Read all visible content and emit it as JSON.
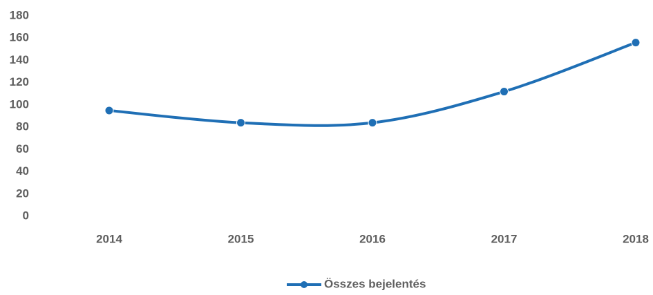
{
  "chart_data": {
    "type": "line",
    "categories": [
      "2014",
      "2015",
      "2016",
      "2017",
      "2018"
    ],
    "series": [
      {
        "name": "Összes bejelentés",
        "color": "#1f6fb5",
        "values": [
          95,
          84,
          84,
          112,
          156
        ]
      }
    ],
    "ylim": [
      0,
      180
    ],
    "yticks": [
      0,
      20,
      40,
      60,
      80,
      100,
      120,
      140,
      160,
      180
    ],
    "grid": false,
    "smooth": true,
    "legend": "bottom"
  }
}
